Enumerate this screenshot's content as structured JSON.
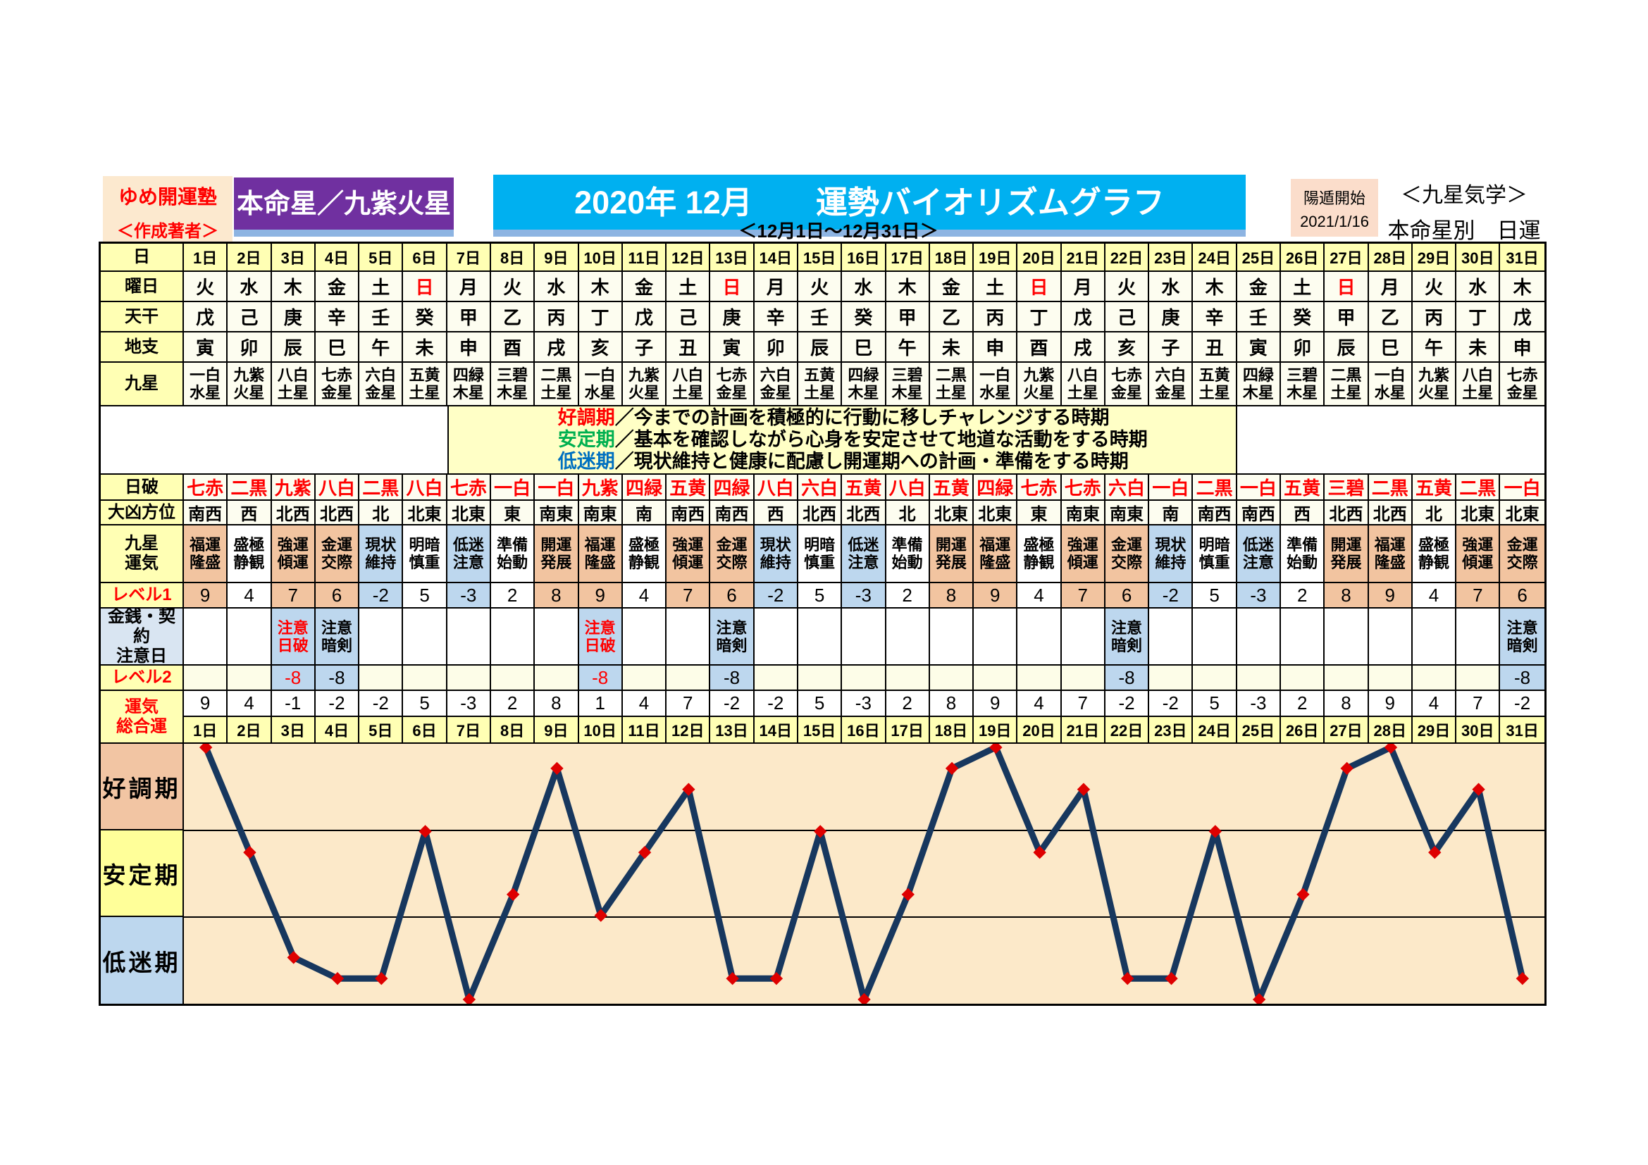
{
  "header": {
    "brand_line1": "ゆめ開運塾",
    "brand_line2": "＜作成著者＞",
    "honmeisei": "本命星／九紫火星",
    "title": "2020年 12月　　運勢バイオリズムグラフ",
    "subtitle": "＜12月1日～12月31日＞",
    "youton_label": "陽遁開始",
    "youton_date": "2021/1/16",
    "school_line1": "＜九星気学＞",
    "school_line2": "本命星別　日運"
  },
  "row_labels": {
    "day": "日",
    "weekday": "曜日",
    "tenkan": "天干",
    "chishi": "地支",
    "kyusei": "九星",
    "nippa": "日破",
    "daikyo": "大凶方位",
    "unki_line1": "九星",
    "unki_line2": "運気",
    "level1": "レベル1",
    "caution_line1": "金銭・契約",
    "caution_line2": "注意日",
    "level2": "レベル2",
    "total_line1": "運気",
    "total_line2": "総合運"
  },
  "legend": [
    {
      "term": "好調期",
      "color": "#FF0000",
      "desc": "／今までの計画を積極的に行動に移しチャレンジする時期"
    },
    {
      "term": "安定期",
      "color": "#00B050",
      "desc": "／基本を確認しながら心身を安定させて地道な活動をする時期"
    },
    {
      "term": "低迷期",
      "color": "#0070C0",
      "desc": "／現状維持と健康に配慮し開運期への計画・準備をする時期"
    }
  ],
  "days": [
    "1日",
    "2日",
    "3日",
    "4日",
    "5日",
    "6日",
    "7日",
    "8日",
    "9日",
    "10日",
    "11日",
    "12日",
    "13日",
    "14日",
    "15日",
    "16日",
    "17日",
    "18日",
    "19日",
    "20日",
    "21日",
    "22日",
    "23日",
    "24日",
    "25日",
    "26日",
    "27日",
    "28日",
    "29日",
    "30日",
    "31日"
  ],
  "weekdays": [
    "火",
    "水",
    "木",
    "金",
    "土",
    "日",
    "月",
    "火",
    "水",
    "木",
    "金",
    "土",
    "日",
    "月",
    "火",
    "水",
    "木",
    "金",
    "土",
    "日",
    "月",
    "火",
    "水",
    "木",
    "金",
    "土",
    "日",
    "月",
    "火",
    "水",
    "木"
  ],
  "sundays": [
    6,
    13,
    20,
    27
  ],
  "tenkan": [
    "戊",
    "己",
    "庚",
    "辛",
    "壬",
    "癸",
    "甲",
    "乙",
    "丙",
    "丁",
    "戊",
    "己",
    "庚",
    "辛",
    "壬",
    "癸",
    "甲",
    "乙",
    "丙",
    "丁",
    "戊",
    "己",
    "庚",
    "辛",
    "壬",
    "癸",
    "甲",
    "乙",
    "丙",
    "丁",
    "戊"
  ],
  "chishi": [
    "寅",
    "卯",
    "辰",
    "巳",
    "午",
    "未",
    "申",
    "酉",
    "戌",
    "亥",
    "子",
    "丑",
    "寅",
    "卯",
    "辰",
    "巳",
    "午",
    "未",
    "申",
    "酉",
    "戌",
    "亥",
    "子",
    "丑",
    "寅",
    "卯",
    "辰",
    "巳",
    "午",
    "未",
    "申"
  ],
  "kyusei": [
    [
      "一白",
      "水星"
    ],
    [
      "九紫",
      "火星"
    ],
    [
      "八白",
      "土星"
    ],
    [
      "七赤",
      "金星"
    ],
    [
      "六白",
      "金星"
    ],
    [
      "五黄",
      "土星"
    ],
    [
      "四緑",
      "木星"
    ],
    [
      "三碧",
      "木星"
    ],
    [
      "二黒",
      "土星"
    ],
    [
      "一白",
      "水星"
    ],
    [
      "九紫",
      "火星"
    ],
    [
      "八白",
      "土星"
    ],
    [
      "七赤",
      "金星"
    ],
    [
      "六白",
      "金星"
    ],
    [
      "五黄",
      "土星"
    ],
    [
      "四緑",
      "木星"
    ],
    [
      "三碧",
      "木星"
    ],
    [
      "二黒",
      "土星"
    ],
    [
      "一白",
      "水星"
    ],
    [
      "九紫",
      "火星"
    ],
    [
      "八白",
      "土星"
    ],
    [
      "七赤",
      "金星"
    ],
    [
      "六白",
      "金星"
    ],
    [
      "五黄",
      "土星"
    ],
    [
      "四緑",
      "木星"
    ],
    [
      "三碧",
      "木星"
    ],
    [
      "二黒",
      "土星"
    ],
    [
      "一白",
      "水星"
    ],
    [
      "九紫",
      "火星"
    ],
    [
      "八白",
      "土星"
    ],
    [
      "七赤",
      "金星"
    ]
  ],
  "nippa": [
    "七赤",
    "二黒",
    "九紫",
    "八白",
    "二黒",
    "八白",
    "七赤",
    "一白",
    "一白",
    "九紫",
    "四緑",
    "五黄",
    "四緑",
    "八白",
    "六白",
    "五黄",
    "八白",
    "五黄",
    "四緑",
    "七赤",
    "七赤",
    "六白",
    "一白",
    "二黒",
    "一白",
    "五黄",
    "三碧",
    "二黒",
    "五黄",
    "二黒",
    "一白"
  ],
  "daikyo": [
    "南西",
    "西",
    "北西",
    "北西",
    "北",
    "北東",
    "北東",
    "東",
    "南東",
    "南東",
    "南",
    "南西",
    "南西",
    "西",
    "北西",
    "北西",
    "北",
    "北東",
    "北東",
    "東",
    "南東",
    "南東",
    "南",
    "南西",
    "南西",
    "西",
    "北西",
    "北西",
    "北",
    "北東",
    "北東"
  ],
  "unki": [
    [
      "福運",
      "隆盛"
    ],
    [
      "盛極",
      "静観"
    ],
    [
      "強運",
      "傾運"
    ],
    [
      "金運",
      "交際"
    ],
    [
      "現状",
      "維持"
    ],
    [
      "明暗",
      "慎重"
    ],
    [
      "低迷",
      "注意"
    ],
    [
      "準備",
      "始動"
    ],
    [
      "開運",
      "発展"
    ],
    [
      "福運",
      "隆盛"
    ],
    [
      "盛極",
      "静観"
    ],
    [
      "強運",
      "傾運"
    ],
    [
      "金運",
      "交際"
    ],
    [
      "現状",
      "維持"
    ],
    [
      "明暗",
      "慎重"
    ],
    [
      "低迷",
      "注意"
    ],
    [
      "準備",
      "始動"
    ],
    [
      "開運",
      "発展"
    ],
    [
      "福運",
      "隆盛"
    ],
    [
      "盛極",
      "静観"
    ],
    [
      "強運",
      "傾運"
    ],
    [
      "金運",
      "交際"
    ],
    [
      "現状",
      "維持"
    ],
    [
      "明暗",
      "慎重"
    ],
    [
      "低迷",
      "注意"
    ],
    [
      "準備",
      "始動"
    ],
    [
      "開運",
      "発展"
    ],
    [
      "福運",
      "隆盛"
    ],
    [
      "盛極",
      "静観"
    ],
    [
      "強運",
      "傾運"
    ],
    [
      "金運",
      "交際"
    ]
  ],
  "level1": [
    9,
    4,
    7,
    6,
    -2,
    5,
    -3,
    2,
    8,
    9,
    4,
    7,
    6,
    -2,
    5,
    -3,
    2,
    8,
    9,
    4,
    7,
    6,
    -2,
    5,
    -3,
    2,
    8,
    9,
    4,
    7,
    6
  ],
  "caution": [
    null,
    null,
    {
      "lines": [
        "注意",
        "日破"
      ],
      "red": true
    },
    {
      "lines": [
        "注意",
        "暗剣"
      ],
      "red": false
    },
    null,
    null,
    null,
    null,
    null,
    {
      "lines": [
        "注意",
        "日破"
      ],
      "red": true
    },
    null,
    null,
    {
      "lines": [
        "注意",
        "暗剣"
      ],
      "red": false
    },
    null,
    null,
    null,
    null,
    null,
    null,
    null,
    null,
    {
      "lines": [
        "注意",
        "暗剣"
      ],
      "red": false
    },
    null,
    null,
    null,
    null,
    null,
    null,
    null,
    null,
    {
      "lines": [
        "注意",
        "暗剣"
      ],
      "red": false
    }
  ],
  "level2": [
    null,
    null,
    {
      "value": -8,
      "red": true
    },
    {
      "value": -8,
      "red": false
    },
    null,
    null,
    null,
    null,
    null,
    {
      "value": -8,
      "red": true
    },
    null,
    null,
    {
      "value": -8,
      "red": false
    },
    null,
    null,
    null,
    null,
    null,
    null,
    null,
    null,
    {
      "value": -8,
      "red": false
    },
    null,
    null,
    null,
    null,
    null,
    null,
    null,
    null,
    {
      "value": -8,
      "red": false
    }
  ],
  "total": [
    9,
    4,
    -1,
    -2,
    -2,
    5,
    -3,
    2,
    8,
    1,
    4,
    7,
    -2,
    -2,
    5,
    -3,
    2,
    8,
    9,
    4,
    7,
    -2,
    -2,
    5,
    -3,
    2,
    8,
    9,
    4,
    7,
    -2
  ],
  "graph": {
    "bands": [
      {
        "label": "好調期",
        "bg": "#F2C5A3"
      },
      {
        "label": "安定期",
        "bg": "#FFFF99"
      },
      {
        "label": "低迷期",
        "bg": "#BDD7EE"
      }
    ],
    "plot_bg": "#FCE9C9",
    "line_color": "#17375E",
    "marker_color": "#DE0000"
  },
  "chart_data": {
    "type": "line",
    "title": "2020年 12月 運勢バイオリズムグラフ",
    "x": [
      1,
      2,
      3,
      4,
      5,
      6,
      7,
      8,
      9,
      10,
      11,
      12,
      13,
      14,
      15,
      16,
      17,
      18,
      19,
      20,
      21,
      22,
      23,
      24,
      25,
      26,
      27,
      28,
      29,
      30,
      31
    ],
    "series": [
      {
        "name": "運気総合運",
        "values": [
          9,
          4,
          -1,
          -2,
          -2,
          5,
          -3,
          2,
          8,
          1,
          4,
          7,
          -2,
          -2,
          5,
          -3,
          2,
          8,
          9,
          4,
          7,
          -2,
          -2,
          5,
          -3,
          2,
          8,
          9,
          4,
          7,
          -2
        ]
      }
    ],
    "bands": [
      {
        "label": "好調期",
        "range": [
          5,
          9
        ]
      },
      {
        "label": "安定期",
        "range": [
          1,
          5
        ]
      },
      {
        "label": "低迷期",
        "range": [
          -3,
          1
        ]
      }
    ],
    "ylim": [
      -3.2,
      9.17
    ],
    "xlabel": "日",
    "ylabel": "",
    "grid": "horizontal band lines at y=5 and y=1",
    "legend_position": "none",
    "marker": "diamond"
  }
}
